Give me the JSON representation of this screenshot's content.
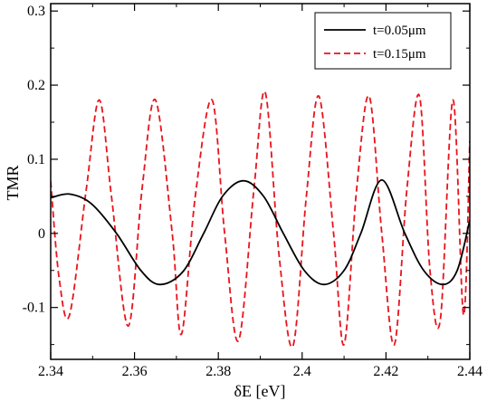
{
  "chart_data": {
    "type": "line",
    "title": "",
    "xlabel": "δE [eV]",
    "ylabel": "TMR",
    "xlim": [
      2.34,
      2.44
    ],
    "ylim": [
      -0.17,
      0.31
    ],
    "grid": false,
    "legend_position": "top-right",
    "x_ticks": [
      {
        "value": 2.34,
        "label": "2.34"
      },
      {
        "value": 2.36,
        "label": "2.36"
      },
      {
        "value": 2.38,
        "label": "2.38"
      },
      {
        "value": 2.4,
        "label": "2.4"
      },
      {
        "value": 2.42,
        "label": "2.42"
      },
      {
        "value": 2.44,
        "label": "2.44"
      }
    ],
    "y_ticks": [
      {
        "value": -0.1,
        "label": "-0.1"
      },
      {
        "value": 0,
        "label": "0"
      },
      {
        "value": 0.1,
        "label": "0.1"
      },
      {
        "value": 0.2,
        "label": "0.2"
      },
      {
        "value": 0.3,
        "label": "0.3"
      }
    ],
    "series": [
      {
        "name": "t=0.05μm",
        "color": "#000000",
        "style": "solid",
        "x": [
          2.34,
          2.3445,
          2.3497,
          2.3557,
          2.3615,
          2.366,
          2.3715,
          2.3765,
          2.381,
          2.386,
          2.3908,
          2.3955,
          2.4005,
          2.4052,
          2.41,
          2.414,
          2.419,
          2.4245,
          2.429,
          2.4335,
          2.437,
          2.44
        ],
        "y": [
          0.048,
          0.053,
          0.04,
          0.0,
          -0.05,
          -0.069,
          -0.052,
          0.0,
          0.05,
          0.071,
          0.05,
          0.0,
          -0.05,
          -0.069,
          -0.05,
          0.0,
          0.072,
          0.0,
          -0.05,
          -0.069,
          -0.05,
          0.018
        ]
      },
      {
        "name": "t=0.15μm",
        "color": "#e8141c",
        "style": "dashed",
        "x": [
          2.34,
          2.342,
          2.3445,
          2.3485,
          2.3516,
          2.3545,
          2.3585,
          2.3618,
          2.365,
          2.369,
          2.3712,
          2.3745,
          2.3785,
          2.3815,
          2.3848,
          2.3885,
          2.3912,
          2.3945,
          2.3978,
          2.401,
          2.404,
          2.4075,
          2.41,
          2.413,
          2.416,
          2.419,
          2.422,
          2.425,
          2.428,
          2.4305,
          2.433,
          2.436,
          2.4385,
          2.44
        ],
        "y": [
          0.07,
          -0.06,
          -0.11,
          0.06,
          0.18,
          0.05,
          -0.125,
          0.06,
          0.18,
          0.0,
          -0.136,
          0.05,
          0.18,
          0.0,
          -0.145,
          0.06,
          0.19,
          -0.03,
          -0.152,
          0.05,
          0.185,
          0.0,
          -0.15,
          0.06,
          0.185,
          0.0,
          -0.15,
          0.06,
          0.185,
          -0.05,
          -0.115,
          0.18,
          -0.11,
          0.125
        ]
      }
    ]
  }
}
